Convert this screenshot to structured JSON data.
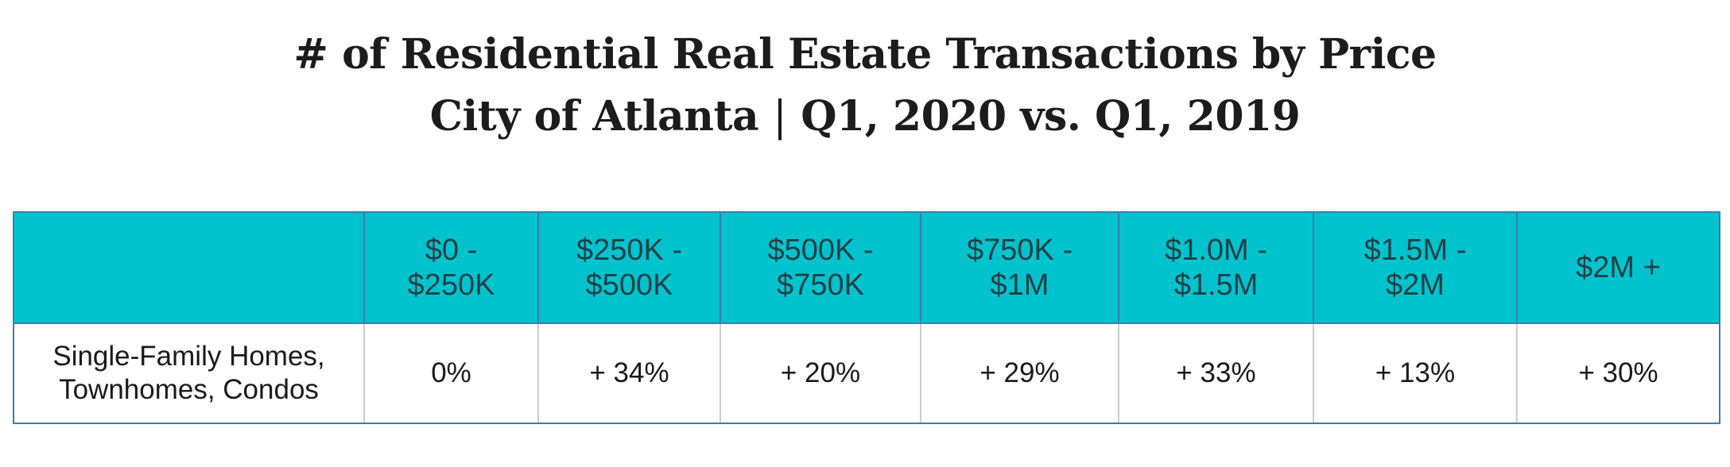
{
  "header": {
    "title": "# of Residential Real Estate Transactions by Price",
    "subtitle_city": "City of Atlanta",
    "subtitle_separator": "|",
    "subtitle_period": "Q1, 2020 vs. Q1, 2019"
  },
  "chart_data": {
    "type": "table",
    "title": "# of Residential Real Estate Transactions by Price",
    "subtitle": "City of Atlanta | Q1, 2020 vs. Q1, 2019",
    "corner_label": "",
    "columns": [
      {
        "line1": "$0 -",
        "line2": "$250K"
      },
      {
        "line1": "$250K -",
        "line2": "$500K"
      },
      {
        "line1": "$500K -",
        "line2": "$750K"
      },
      {
        "line1": "$750K -",
        "line2": "$1M"
      },
      {
        "line1": "$1.0M -",
        "line2": "$1.5M"
      },
      {
        "line1": "$1.5M -",
        "line2": "$2M"
      },
      {
        "line1": "$2M +",
        "line2": ""
      }
    ],
    "rows": [
      {
        "label_line1": "Single-Family Homes,",
        "label_line2": "Townhomes, Condos",
        "values": [
          "0%",
          "+ 34%",
          "+ 20%",
          "+ 29%",
          "+ 33%",
          "+ 13%",
          "+ 30%"
        ],
        "change_percent": [
          0,
          34,
          20,
          29,
          33,
          13,
          30
        ]
      }
    ]
  },
  "colors": {
    "header_background": "#00c3cd",
    "header_text": "#1f3f46",
    "border": "#3e7cae",
    "inner_divider": "#c9ccd1",
    "title_text": "#1c1c1c"
  }
}
